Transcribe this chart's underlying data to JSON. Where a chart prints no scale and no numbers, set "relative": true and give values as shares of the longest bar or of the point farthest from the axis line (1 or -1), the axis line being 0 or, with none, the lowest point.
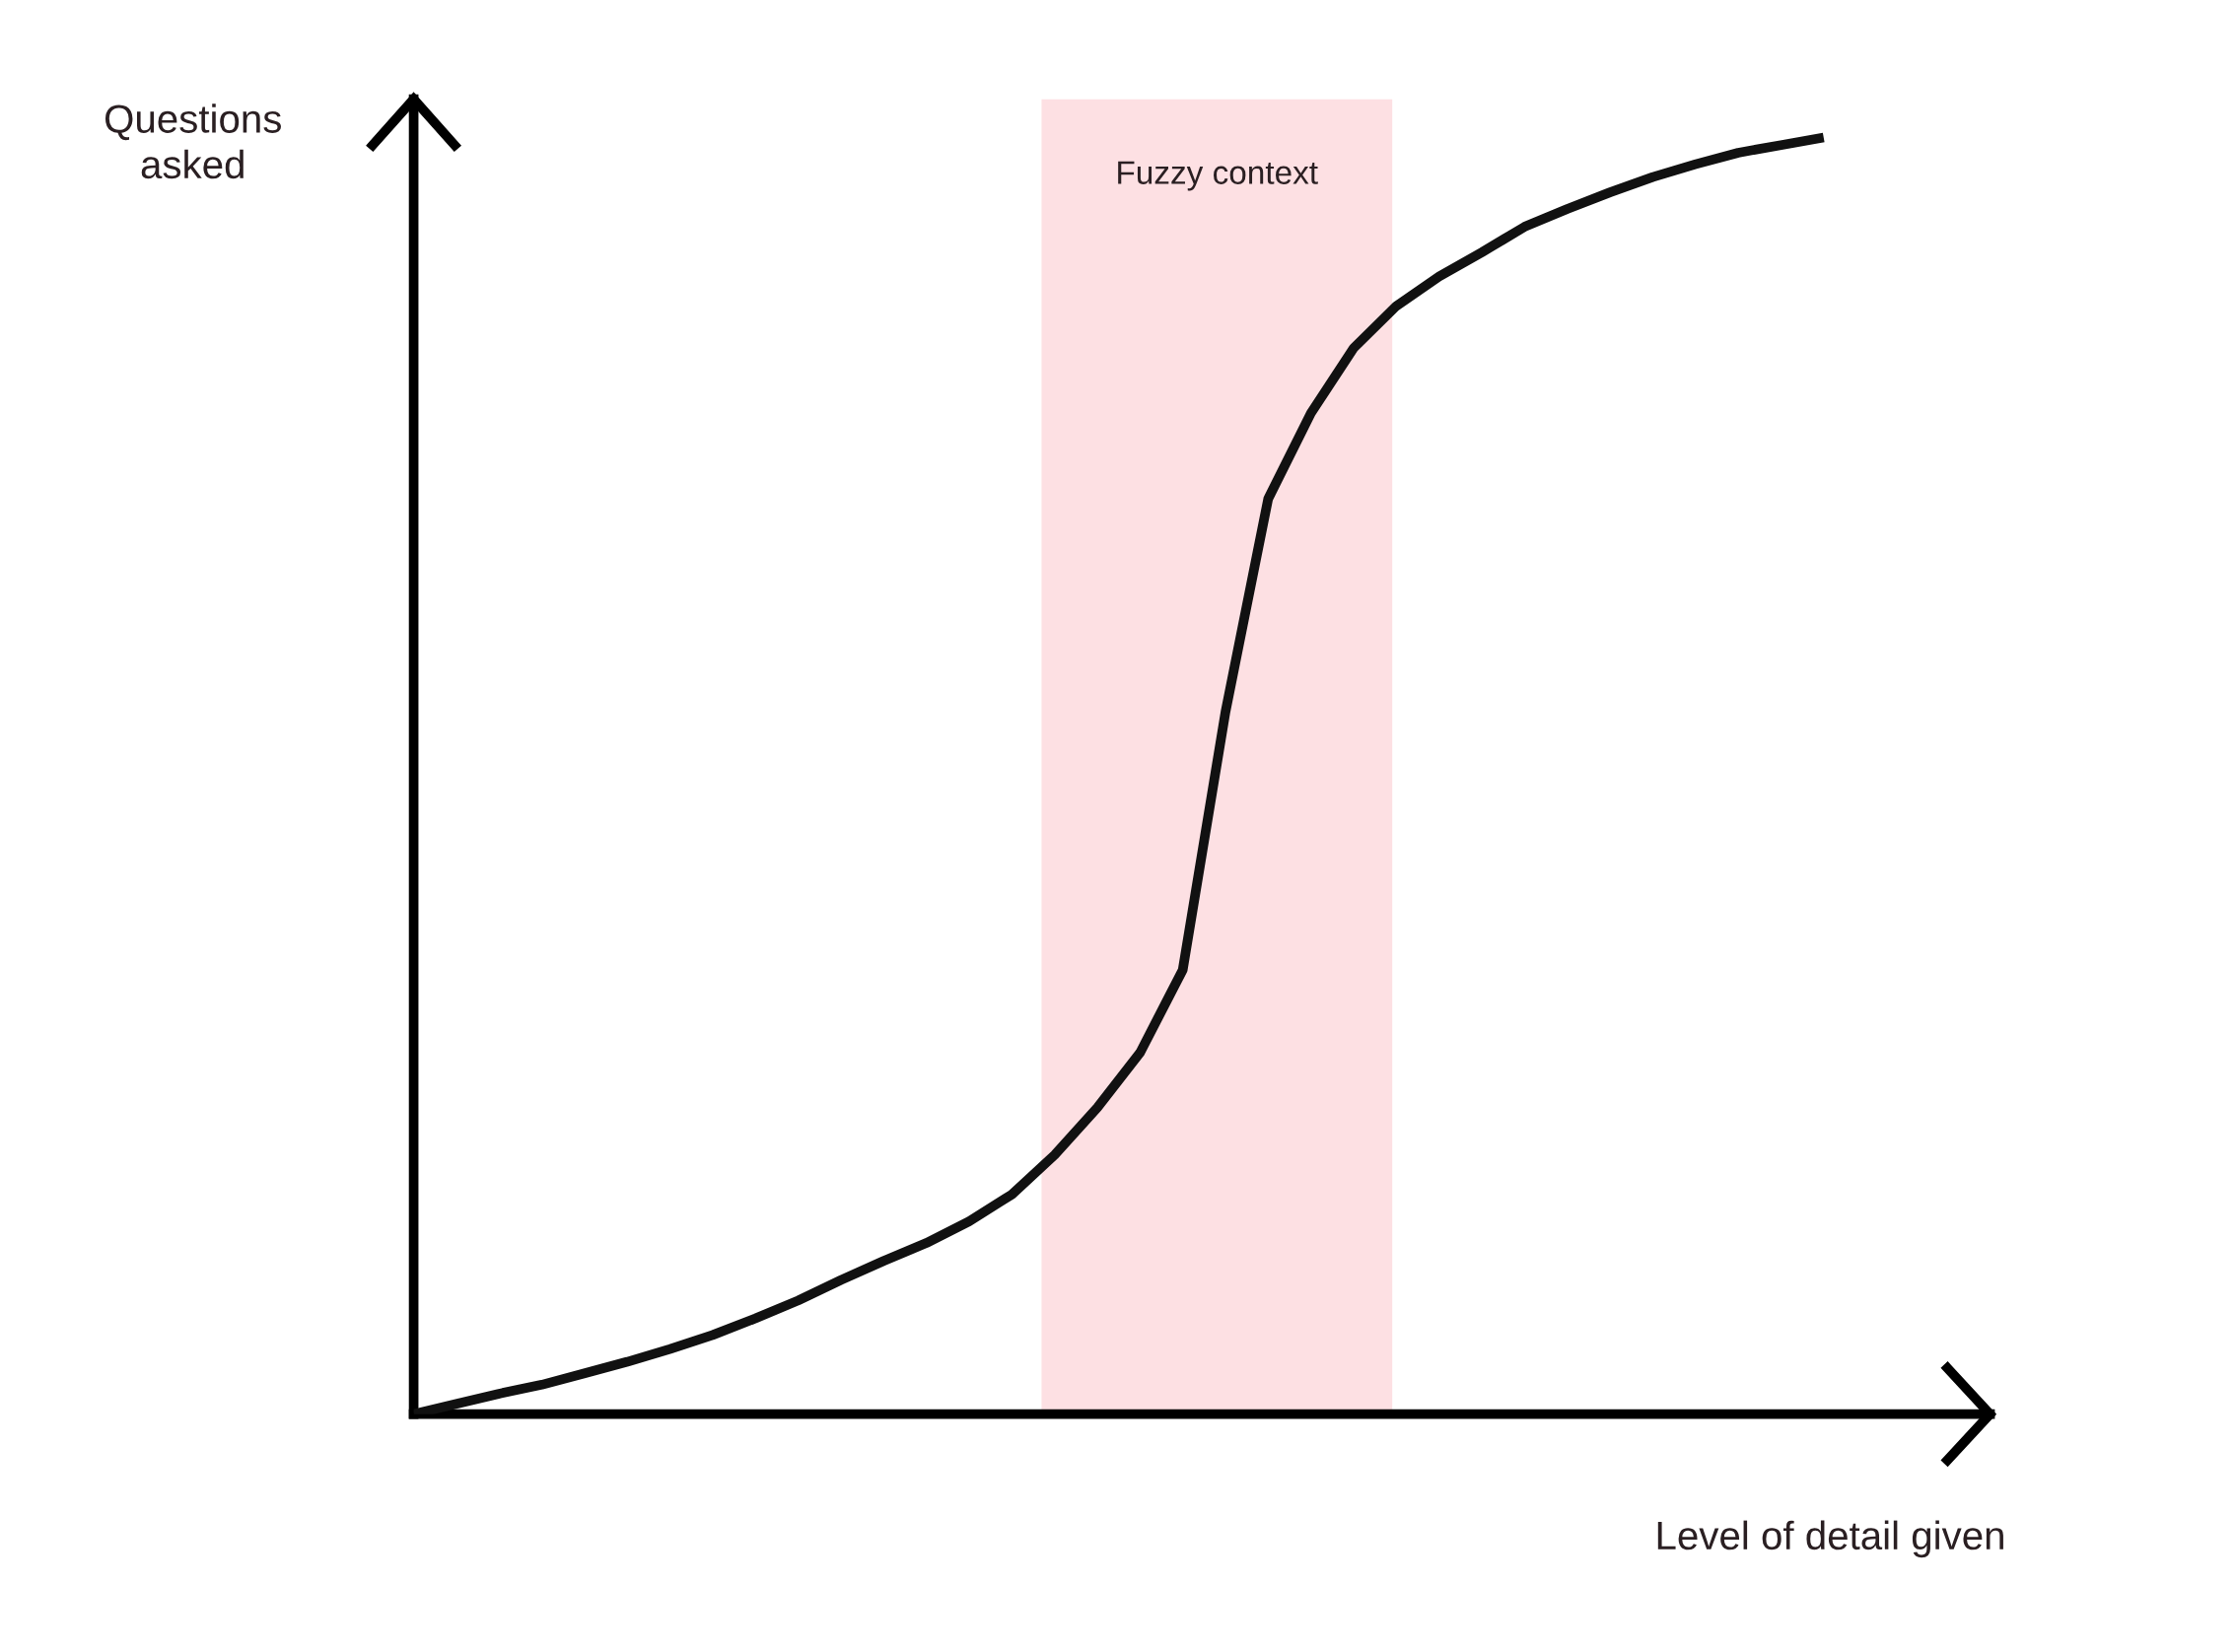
{
  "chart_data": {
    "type": "line",
    "relative": true,
    "xlabel": "Level of detail given",
    "ylabel": "Questions\nasked",
    "categories": [
      null,
      null,
      null,
      null,
      null,
      null,
      null,
      null,
      null,
      null,
      null,
      null,
      null,
      null,
      null,
      null,
      null,
      null,
      null,
      null,
      null,
      null,
      null,
      null,
      null,
      null,
      null,
      null,
      null,
      null,
      null,
      null,
      null,
      null
    ],
    "series": [
      {
        "color": "#111111",
        "values": [
          0,
          0.008,
          0.016,
          0.023,
          0.032,
          0.041,
          0.051,
          0.062,
          0.075,
          0.089,
          0.105,
          0.12,
          0.134,
          0.151,
          0.172,
          0.203,
          0.24,
          0.283,
          0.348,
          0.55,
          0.717,
          0.784,
          0.835,
          0.868,
          0.891,
          0.91,
          0.93,
          0.944,
          0.957,
          0.969,
          0.979,
          0.988,
          0.994,
          1
        ]
      }
    ],
    "annotations": [
      "Fuzzy context"
    ],
    "line_style": "solid",
    "marker": "none"
  }
}
